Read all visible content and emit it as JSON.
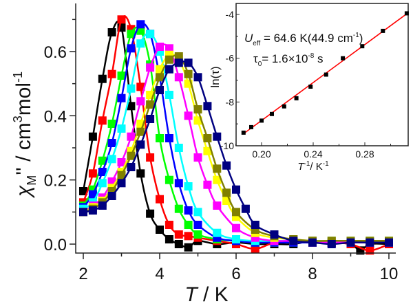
{
  "chart_data": [
    {
      "type": "line",
      "title": "",
      "xlabel": "T / K",
      "xlabel_italic": "T",
      "xlabel_rest": " / K",
      "ylabel": "χM'' / cm3mol-1",
      "ylabel_parts": {
        "chi": "χ",
        "chi_sub": "M",
        "prime": "''",
        "unit": " / cm",
        "unit_sup": "3",
        "unit2": "mol",
        "unit2_sup": "-1"
      },
      "xlim": [
        1.8,
        10.6
      ],
      "ylim": [
        -0.025,
        0.75
      ],
      "xticks": [
        2,
        4,
        6,
        8,
        10
      ],
      "xtick_labels": [
        "2",
        "4",
        "6",
        "8",
        "10"
      ],
      "yticks": [
        0.0,
        0.2,
        0.4,
        0.6
      ],
      "ytick_labels": [
        "0.0",
        "0.2",
        "0.4",
        "0.6"
      ],
      "grid": false,
      "legend": "none",
      "marker": "square",
      "series": [
        {
          "name": "series-1",
          "color": "#000000",
          "x": [
            2.0,
            2.25,
            2.5,
            2.75,
            3.0,
            3.25,
            3.5,
            3.75,
            4.0,
            4.25,
            4.5,
            4.75,
            5.0,
            5.5,
            6.0,
            6.5,
            7.0,
            7.5,
            8.0,
            8.5,
            9.0,
            9.25,
            9.5,
            10.0
          ],
          "y": [
            0.165,
            0.335,
            0.515,
            0.66,
            0.675,
            0.43,
            0.22,
            0.095,
            0.045,
            0.015,
            0.0,
            -0.01,
            0.01,
            0.0,
            0.005,
            0.0,
            0.0,
            0.0,
            0.01,
            0.005,
            0.0,
            -0.02,
            0.0,
            0.0
          ]
        },
        {
          "name": "series-2",
          "color": "#ff0000",
          "x": [
            2.0,
            2.25,
            2.5,
            2.75,
            3.0,
            3.25,
            3.5,
            3.75,
            4.0,
            4.25,
            4.5,
            4.75,
            5.0,
            5.5,
            6.0,
            6.5,
            7.0,
            7.5,
            8.0,
            8.5,
            9.0,
            9.5,
            10.0
          ],
          "y": [
            0.13,
            0.22,
            0.385,
            0.53,
            0.7,
            0.67,
            0.49,
            0.27,
            0.14,
            0.06,
            0.03,
            0.025,
            0.02,
            0.01,
            0.0,
            -0.015,
            0.005,
            0.01,
            0.01,
            0.005,
            0.0,
            -0.02,
            0.0
          ]
        },
        {
          "name": "series-3",
          "color": "#00ff00",
          "x": [
            2.0,
            2.25,
            2.5,
            2.75,
            3.0,
            3.25,
            3.5,
            3.75,
            4.0,
            4.25,
            4.5,
            4.75,
            5.0,
            5.5,
            6.0,
            6.5,
            7.0,
            7.5,
            8.0,
            8.5,
            9.0,
            9.5,
            10.0
          ],
          "y": [
            0.12,
            0.17,
            0.26,
            0.375,
            0.525,
            0.655,
            0.665,
            0.56,
            0.33,
            0.2,
            0.11,
            0.06,
            0.03,
            0.015,
            0.01,
            0.005,
            0.005,
            0.005,
            0.005,
            0.005,
            0.005,
            0.005,
            0.005
          ]
        },
        {
          "name": "series-4",
          "color": "#0000ff",
          "x": [
            2.0,
            2.25,
            2.5,
            2.75,
            3.0,
            3.25,
            3.5,
            3.75,
            4.0,
            4.25,
            4.5,
            4.75,
            5.0,
            5.5,
            6.0,
            6.5,
            7.0,
            7.5,
            8.0,
            8.5,
            9.0,
            9.5,
            10.0
          ],
          "y": [
            0.115,
            0.155,
            0.225,
            0.315,
            0.455,
            0.61,
            0.685,
            0.655,
            0.52,
            0.33,
            0.19,
            0.105,
            0.06,
            0.02,
            0.01,
            0.005,
            0.005,
            0.005,
            0.005,
            0.005,
            0.005,
            0.005,
            0.005
          ]
        },
        {
          "name": "series-5",
          "color": "#00ffff",
          "x": [
            2.0,
            2.25,
            2.5,
            2.75,
            3.0,
            3.25,
            3.5,
            3.75,
            4.0,
            4.25,
            4.5,
            4.75,
            5.0,
            5.5,
            6.0,
            6.5,
            7.0,
            7.5,
            8.0,
            8.5,
            9.0,
            9.5,
            10.0
          ],
          "y": [
            0.11,
            0.13,
            0.19,
            0.265,
            0.36,
            0.485,
            0.625,
            0.655,
            0.6,
            0.465,
            0.3,
            0.18,
            0.1,
            0.035,
            0.015,
            0.01,
            0.01,
            0.01,
            0.01,
            0.01,
            0.01,
            0.01,
            0.01
          ]
        },
        {
          "name": "series-6",
          "color": "#ff00ff",
          "x": [
            2.0,
            2.25,
            2.5,
            2.75,
            3.0,
            3.25,
            3.5,
            3.75,
            4.0,
            4.25,
            4.5,
            4.75,
            5.0,
            5.25,
            5.5,
            6.0,
            6.5,
            7.0,
            7.5,
            8.0,
            8.5,
            9.0,
            9.5,
            10.0
          ],
          "y": [
            0.1,
            0.12,
            0.145,
            0.195,
            0.255,
            0.335,
            0.445,
            0.55,
            0.615,
            0.61,
            0.52,
            0.4,
            0.27,
            0.185,
            0.12,
            0.05,
            0.02,
            0.01,
            0.01,
            0.005,
            0.005,
            0.005,
            0.005,
            0.005
          ]
        },
        {
          "name": "series-7",
          "color": "#ffff00",
          "x": [
            2.0,
            2.25,
            2.5,
            2.75,
            3.0,
            3.25,
            3.5,
            3.75,
            4.0,
            4.25,
            4.5,
            4.75,
            5.0,
            5.25,
            5.5,
            5.75,
            6.0,
            6.5,
            7.0,
            7.5,
            8.0,
            8.5,
            9.0,
            9.5,
            10.0
          ],
          "y": [
            0.1,
            0.115,
            0.135,
            0.175,
            0.225,
            0.29,
            0.375,
            0.465,
            0.545,
            0.59,
            0.575,
            0.5,
            0.385,
            0.29,
            0.2,
            0.135,
            0.085,
            0.035,
            0.02,
            0.015,
            0.01,
            0.01,
            0.01,
            0.01,
            0.01
          ]
        },
        {
          "name": "series-8",
          "color": "#808000",
          "x": [
            2.0,
            2.25,
            2.5,
            2.75,
            3.0,
            3.25,
            3.5,
            3.75,
            4.0,
            4.25,
            4.5,
            4.75,
            5.0,
            5.25,
            5.5,
            5.75,
            6.0,
            6.5,
            7.0,
            7.5,
            8.0,
            8.5,
            9.0,
            9.5,
            10.0
          ],
          "y": [
            0.1,
            0.11,
            0.13,
            0.165,
            0.215,
            0.275,
            0.35,
            0.435,
            0.52,
            0.575,
            0.585,
            0.53,
            0.42,
            0.33,
            0.235,
            0.16,
            0.1,
            0.045,
            0.025,
            0.015,
            0.01,
            0.01,
            0.01,
            0.01,
            0.01
          ]
        },
        {
          "name": "series-9",
          "color": "#000080",
          "x": [
            2.0,
            2.25,
            2.5,
            2.75,
            3.0,
            3.25,
            3.5,
            3.75,
            4.0,
            4.25,
            4.5,
            4.75,
            5.0,
            5.25,
            5.5,
            5.75,
            6.0,
            6.25,
            6.5,
            7.0,
            7.5,
            8.0,
            8.5,
            9.0,
            9.5,
            10.0
          ],
          "y": [
            0.1,
            0.105,
            0.12,
            0.15,
            0.19,
            0.24,
            0.31,
            0.39,
            0.48,
            0.545,
            0.565,
            0.565,
            0.52,
            0.43,
            0.335,
            0.245,
            0.17,
            0.11,
            0.06,
            0.03,
            0.01,
            0.005,
            0.0,
            0.005,
            0.005,
            0.005
          ]
        }
      ]
    },
    {
      "type": "scatter",
      "title": "",
      "xlabel": "T -1/ K-1",
      "xlabel_parts": {
        "t": "T",
        "t_sup": "-1",
        "rest": "/ K",
        "rest_sup": "-1"
      },
      "ylabel": "ln(τ)",
      "xlim": [
        0.18,
        0.313
      ],
      "ylim": [
        -10,
        -3.5
      ],
      "xticks": [
        0.2,
        0.24,
        0.28
      ],
      "xtick_labels": [
        "0.20",
        "0.24",
        "0.28"
      ],
      "yticks": [
        -4,
        -6,
        -8,
        -10
      ],
      "ytick_labels": [
        "-4",
        "-6",
        "-8",
        "-10"
      ],
      "grid": false,
      "points": {
        "color": "#000000",
        "x": [
          0.186,
          0.192,
          0.2,
          0.208,
          0.2175,
          0.227,
          0.238,
          0.25,
          0.263,
          0.278,
          0.294,
          0.3125
        ],
        "y": [
          -9.4,
          -9.15,
          -8.85,
          -8.55,
          -8.2,
          -7.83,
          -7.3,
          -6.75,
          -6.0,
          -5.45,
          -4.75,
          -3.95
        ]
      },
      "fit_line": {
        "color": "#ff0000",
        "x": [
          0.186,
          0.3125
        ],
        "y": [
          -9.45,
          -3.97
        ]
      },
      "annotation": {
        "ueff_main": "U",
        "ueff_sub": "eff",
        "ueff_value": " = 64.6 K(44.9 cm",
        "ueff_sup": "-1",
        "ueff_close": ")",
        "tau_main": "τ",
        "tau_sub": "0",
        "tau_value": "= 1.6×10",
        "tau_sup": "-8",
        "tau_unit": " s"
      }
    }
  ]
}
